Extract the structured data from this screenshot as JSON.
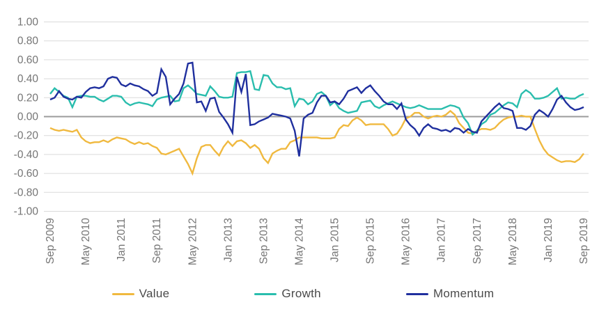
{
  "chart_data": {
    "type": "line",
    "x_start": "Sep 2009",
    "x_end": "Sep 2019",
    "x_interval": "monthly",
    "x_tick_labels": [
      "Sep 2009",
      "May 2010",
      "Jan 2011",
      "Sep 2011",
      "May 2012",
      "Jan 2013",
      "Sep 2013",
      "May 2014",
      "Jan 2015",
      "Sep 2015",
      "May 2016",
      "Jan 2017",
      "Sep 2017",
      "May 2018",
      "Jan 2019",
      "Sep 2019"
    ],
    "x_tick_every_n_months": 8,
    "y_tick_labels": [
      "1.00",
      "0.80",
      "0.60",
      "0.40",
      "0.20",
      "0.00",
      "-0.20",
      "-0.40",
      "-0.60",
      "-0.80",
      "-1.00"
    ],
    "ylim": [
      -1.0,
      1.0
    ],
    "grid": true,
    "legend_position": "bottom",
    "series": [
      {
        "name": "Value",
        "color": "#F0B93F",
        "values": [
          -0.12,
          -0.14,
          -0.15,
          -0.14,
          -0.15,
          -0.16,
          -0.14,
          -0.22,
          -0.26,
          -0.28,
          -0.27,
          -0.27,
          -0.25,
          -0.27,
          -0.24,
          -0.22,
          -0.23,
          -0.24,
          -0.27,
          -0.29,
          -0.27,
          -0.29,
          -0.28,
          -0.31,
          -0.33,
          -0.39,
          -0.4,
          -0.38,
          -0.36,
          -0.34,
          -0.42,
          -0.5,
          -0.6,
          -0.44,
          -0.32,
          -0.3,
          -0.3,
          -0.36,
          -0.41,
          -0.32,
          -0.26,
          -0.31,
          -0.26,
          -0.25,
          -0.28,
          -0.33,
          -0.3,
          -0.34,
          -0.44,
          -0.49,
          -0.39,
          -0.36,
          -0.34,
          -0.34,
          -0.27,
          -0.25,
          -0.22,
          -0.22,
          -0.22,
          -0.22,
          -0.22,
          -0.23,
          -0.23,
          -0.23,
          -0.22,
          -0.13,
          -0.09,
          -0.1,
          -0.04,
          -0.01,
          -0.04,
          -0.09,
          -0.08,
          -0.08,
          -0.08,
          -0.08,
          -0.13,
          -0.2,
          -0.18,
          -0.11,
          -0.02,
          0.0,
          0.04,
          0.04,
          0.0,
          -0.02,
          0.0,
          0.01,
          0.0,
          0.02,
          0.06,
          0.02,
          -0.07,
          -0.12,
          -0.17,
          -0.18,
          -0.15,
          -0.13,
          -0.13,
          -0.14,
          -0.12,
          -0.07,
          -0.03,
          -0.01,
          0.0,
          0.0,
          0.01,
          0.0,
          0.0,
          -0.13,
          -0.25,
          -0.34,
          -0.4,
          -0.43,
          -0.46,
          -0.48,
          -0.47,
          -0.47,
          -0.48,
          -0.45,
          -0.39
        ]
      },
      {
        "name": "Growth",
        "color": "#29BDAD",
        "values": [
          0.24,
          0.3,
          0.26,
          0.22,
          0.2,
          0.1,
          0.21,
          0.22,
          0.22,
          0.21,
          0.21,
          0.18,
          0.16,
          0.19,
          0.22,
          0.22,
          0.21,
          0.15,
          0.12,
          0.14,
          0.15,
          0.14,
          0.13,
          0.11,
          0.18,
          0.2,
          0.21,
          0.22,
          0.16,
          0.17,
          0.3,
          0.33,
          0.29,
          0.24,
          0.23,
          0.22,
          0.32,
          0.27,
          0.21,
          0.2,
          0.2,
          0.21,
          0.46,
          0.47,
          0.47,
          0.48,
          0.29,
          0.28,
          0.44,
          0.43,
          0.35,
          0.31,
          0.31,
          0.29,
          0.3,
          0.11,
          0.19,
          0.18,
          0.13,
          0.16,
          0.24,
          0.26,
          0.22,
          0.12,
          0.16,
          0.09,
          0.06,
          0.04,
          0.05,
          0.06,
          0.15,
          0.16,
          0.17,
          0.11,
          0.09,
          0.12,
          0.14,
          0.16,
          0.14,
          0.12,
          0.1,
          0.09,
          0.1,
          0.12,
          0.1,
          0.08,
          0.08,
          0.08,
          0.08,
          0.1,
          0.12,
          0.11,
          0.09,
          -0.01,
          -0.07,
          -0.19,
          -0.15,
          -0.08,
          -0.05,
          0.02,
          0.04,
          0.08,
          0.12,
          0.15,
          0.14,
          0.1,
          0.24,
          0.28,
          0.25,
          0.19,
          0.19,
          0.2,
          0.22,
          0.26,
          0.3,
          0.19,
          0.2,
          0.19,
          0.19,
          0.22,
          0.24
        ]
      },
      {
        "name": "Momentum",
        "color": "#1F2F9E",
        "values": [
          0.18,
          0.2,
          0.27,
          0.21,
          0.19,
          0.18,
          0.21,
          0.2,
          0.26,
          0.3,
          0.31,
          0.3,
          0.32,
          0.4,
          0.42,
          0.41,
          0.34,
          0.32,
          0.35,
          0.33,
          0.32,
          0.29,
          0.27,
          0.22,
          0.25,
          0.5,
          0.42,
          0.13,
          0.19,
          0.24,
          0.35,
          0.56,
          0.57,
          0.15,
          0.16,
          0.06,
          0.19,
          0.2,
          0.05,
          -0.01,
          -0.08,
          -0.17,
          0.42,
          0.26,
          0.45,
          -0.09,
          -0.08,
          -0.05,
          -0.03,
          -0.01,
          0.03,
          0.02,
          0.01,
          0.0,
          -0.02,
          -0.15,
          -0.42,
          -0.02,
          0.02,
          0.04,
          0.15,
          0.22,
          0.22,
          0.15,
          0.16,
          0.13,
          0.19,
          0.27,
          0.29,
          0.31,
          0.25,
          0.3,
          0.33,
          0.27,
          0.22,
          0.16,
          0.13,
          0.13,
          0.08,
          0.14,
          -0.03,
          -0.09,
          -0.13,
          -0.2,
          -0.12,
          -0.08,
          -0.12,
          -0.13,
          -0.15,
          -0.14,
          -0.16,
          -0.12,
          -0.13,
          -0.17,
          -0.13,
          -0.16,
          -0.17,
          -0.05,
          0.0,
          0.05,
          0.1,
          0.14,
          0.09,
          0.08,
          0.06,
          -0.12,
          -0.12,
          -0.14,
          -0.1,
          0.02,
          0.07,
          0.04,
          0.0,
          0.08,
          0.18,
          0.22,
          0.15,
          0.1,
          0.07,
          0.08,
          0.1
        ]
      }
    ],
    "colors": {
      "gridline": "#DADADA",
      "zero_line": "#9B9B9B",
      "axis_label": "#757575",
      "legend_text": "#4a4a4a",
      "background": "#ffffff"
    }
  },
  "legend": {
    "items": [
      {
        "label": "Value",
        "color": "#F0B93F"
      },
      {
        "label": "Growth",
        "color": "#29BDAD"
      },
      {
        "label": "Momentum",
        "color": "#1F2F9E"
      }
    ]
  }
}
